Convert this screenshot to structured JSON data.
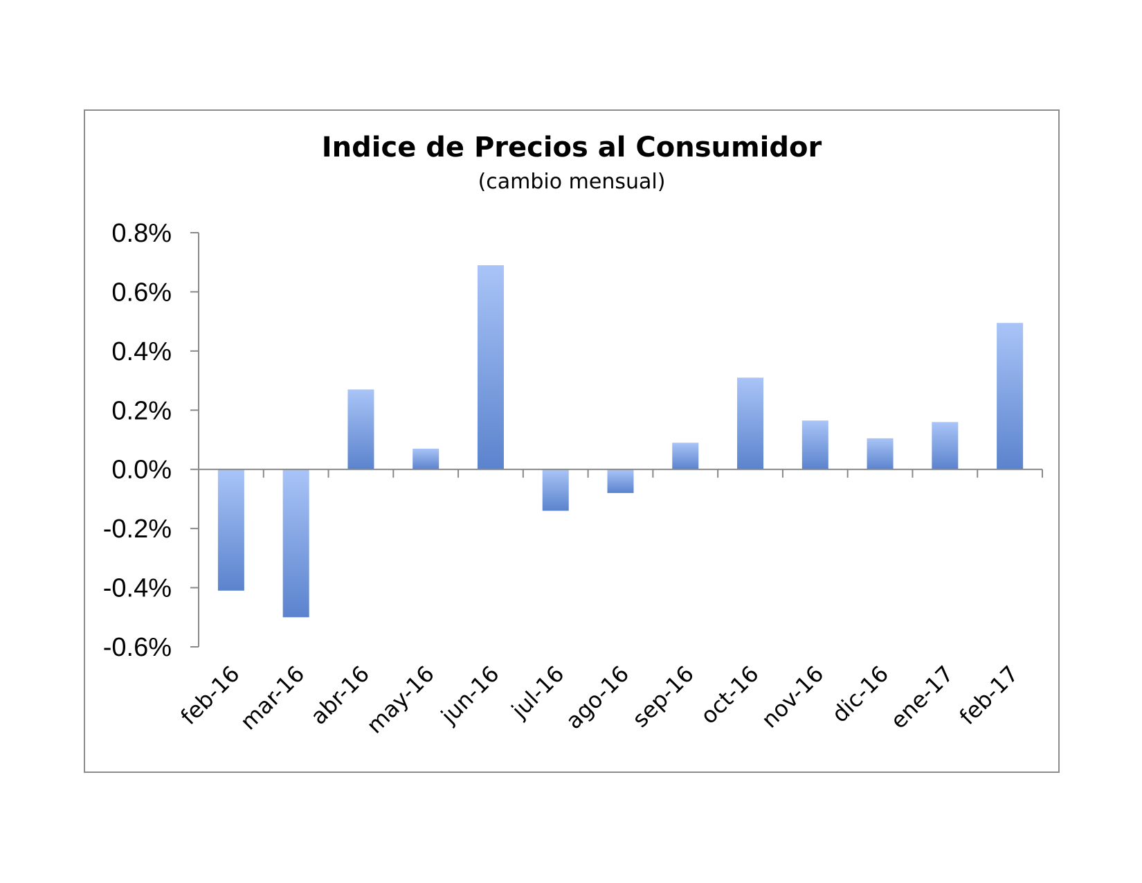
{
  "chart_data": {
    "type": "bar",
    "title": "Indice de Precios al Consumidor",
    "subtitle": "(cambio mensual)",
    "xlabel": "",
    "ylabel": "",
    "categories": [
      "feb-16",
      "mar-16",
      "abr-16",
      "may-16",
      "jun-16",
      "jul-16",
      "ago-16",
      "sep-16",
      "oct-16",
      "nov-16",
      "dic-16",
      "ene-17",
      "feb-17"
    ],
    "values": [
      -0.41,
      -0.5,
      0.27,
      0.07,
      0.69,
      -0.14,
      -0.08,
      0.09,
      0.31,
      0.165,
      0.105,
      0.16,
      0.495
    ],
    "ylim": [
      -0.6,
      0.8
    ],
    "yticks": [
      0.8,
      0.6,
      0.4,
      0.2,
      0.0,
      -0.2,
      -0.4,
      -0.6
    ],
    "ytick_labels": [
      "0.8%",
      "0.6%",
      "0.4%",
      "0.2%",
      "0.0%",
      "-0.2%",
      "-0.4%",
      "-0.6%"
    ],
    "grid": false,
    "legend": "none",
    "colors": {
      "bar_light": "#a9c4f7",
      "bar_dark": "#5b83cd",
      "axis": "#888888",
      "frame": "#8c8c8c"
    }
  }
}
